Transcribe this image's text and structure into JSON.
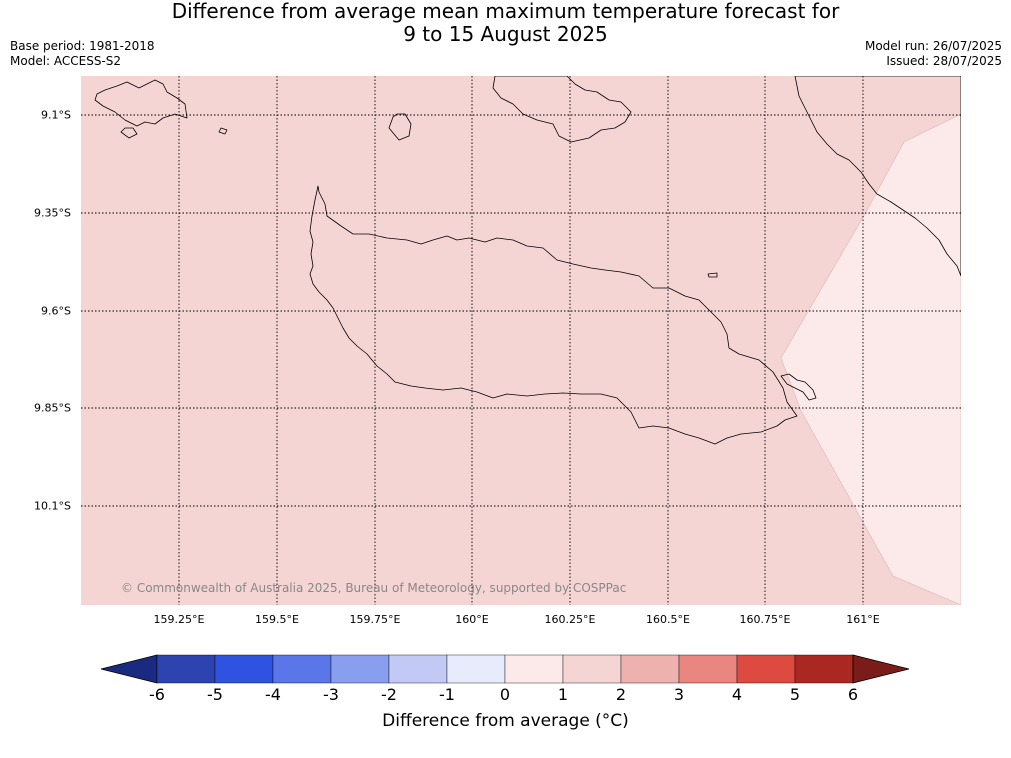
{
  "title": {
    "line1": "Difference from average mean maximum temperature forecast for",
    "line2": "9 to 15 August 2025"
  },
  "meta": {
    "base_period": "Base period: 1981-2018",
    "model": "Model: ACCESS-S2",
    "model_run": "Model run: 26/07/2025",
    "issued": "Issued: 28/07/2025"
  },
  "map": {
    "copyright": "© Commonwealth of Australia 2025, Bureau of Meteorology, supported by COSPPac",
    "lat_labels": [
      "9.1°S",
      "9.35°S",
      "9.6°S",
      "9.85°S",
      "10.1°S"
    ],
    "lon_labels": [
      "159.25°E",
      "159.5°E",
      "159.75°E",
      "160°E",
      "160.25°E",
      "160.5°E",
      "160.75°E",
      "161°E"
    ],
    "fill_colors": {
      "anomaly_1_to_2": "#f5d5d4",
      "anomaly_0_to_1": "#fbeae9"
    },
    "dominant_anomaly_range": "1 to 2",
    "east_edge_anomaly_range": "0 to 1"
  },
  "colorbar": {
    "ticks": [
      "-6",
      "-5",
      "-4",
      "-3",
      "-2",
      "-1",
      "0",
      "1",
      "2",
      "3",
      "4",
      "5",
      "6"
    ],
    "colors": [
      "#1a2a80",
      "#2c43b0",
      "#2f52e0",
      "#5a76e8",
      "#8a9ef0",
      "#c2c9f5",
      "#e8ebfc",
      "#fbeae9",
      "#f5d5d4",
      "#efb1ae",
      "#e8867f",
      "#dd4a40",
      "#ab2822",
      "#7a1c1a"
    ],
    "label": "Difference from average (°C)",
    "extends": "both"
  }
}
